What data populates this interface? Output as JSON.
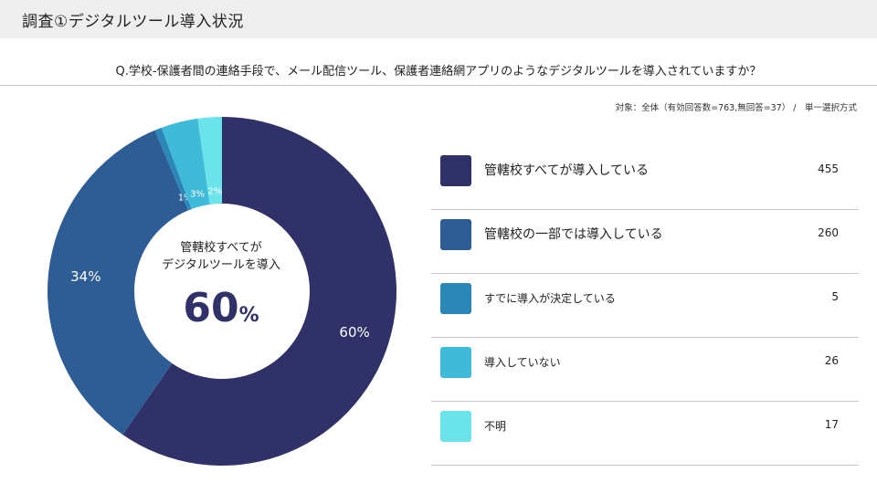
{
  "header": {
    "title": "調査①デジタルツール導入状況"
  },
  "question": "Q.学校-保護者間の連絡手段で、メール配信ツール、保護者連絡網アプリのようなデジタルツールを導入されていますか？",
  "note": "対象：全体（有効回答数=763,無回答=37） /　単一選択方式",
  "center": {
    "line1": "管轄校すべてが",
    "line2": "デジタルツールを導入",
    "percent": "60",
    "unit": "%"
  },
  "chart_data": {
    "type": "pie",
    "categories": [
      "管轄校すべてが導入している",
      "管轄校の一部では導入している",
      "すでに導入が決定している",
      "導入していない",
      "不明"
    ],
    "values": [
      455,
      260,
      5,
      26,
      17
    ],
    "percent_labels": [
      "60%",
      "34%",
      "1%",
      "3%",
      "2%"
    ],
    "colors": [
      "#2f3168",
      "#2e5c94",
      "#2b87b7",
      "#3fbad9",
      "#6ae3ea"
    ]
  }
}
